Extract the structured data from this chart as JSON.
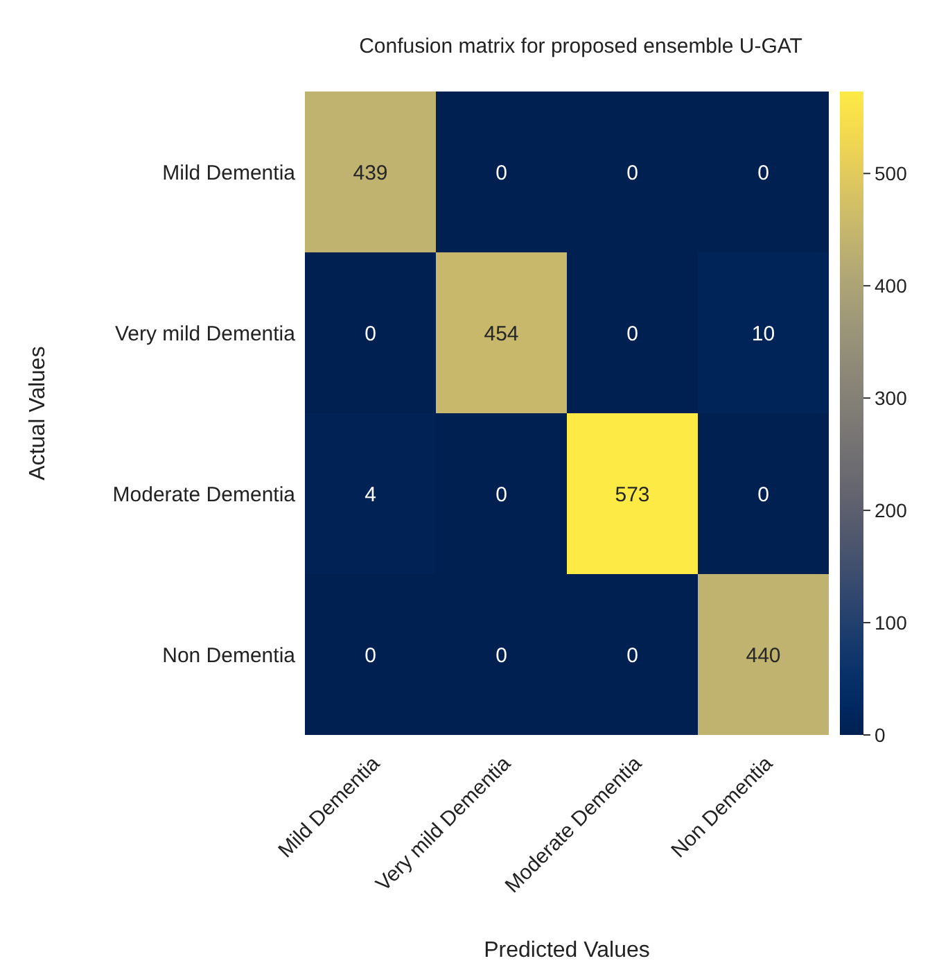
{
  "chart_data": {
    "type": "heatmap",
    "title": "Confusion matrix for proposed ensemble U-GAT",
    "xlabel": "Predicted Values",
    "ylabel": "Actual Values",
    "categories": [
      "Mild Dementia",
      "Very mild Dementia",
      "Moderate Dementia",
      "Non Dementia"
    ],
    "y_categories": [
      "Mild Dementia",
      "Very mild Dementia",
      "Moderate Dementia",
      "Non Dementia"
    ],
    "cells": [
      [
        439,
        0,
        0,
        0
      ],
      [
        0,
        454,
        0,
        10
      ],
      [
        4,
        0,
        573,
        0
      ],
      [
        0,
        0,
        0,
        440
      ]
    ],
    "data_labels": true,
    "clim": [
      0,
      573
    ],
    "cticks": [
      0,
      100,
      200,
      300,
      400,
      500
    ]
  }
}
